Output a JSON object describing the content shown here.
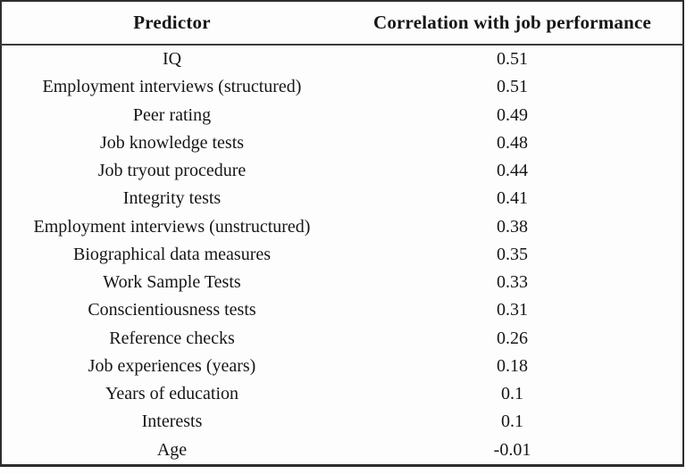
{
  "table": {
    "columns": [
      {
        "label": "Predictor"
      },
      {
        "label": "Correlation with job performance"
      }
    ],
    "rows": [
      {
        "predictor": "IQ",
        "correlation": "0.51"
      },
      {
        "predictor": "Employment interviews (structured)",
        "correlation": "0.51"
      },
      {
        "predictor": "Peer rating",
        "correlation": "0.49"
      },
      {
        "predictor": "Job knowledge tests",
        "correlation": "0.48"
      },
      {
        "predictor": "Job tryout procedure",
        "correlation": "0.44"
      },
      {
        "predictor": "Integrity tests",
        "correlation": "0.41"
      },
      {
        "predictor": "Employment interviews (unstructured)",
        "correlation": "0.38"
      },
      {
        "predictor": "Biographical data measures",
        "correlation": "0.35"
      },
      {
        "predictor": "Work Sample Tests",
        "correlation": "0.33"
      },
      {
        "predictor": "Conscientiousness tests",
        "correlation": "0.31"
      },
      {
        "predictor": "Reference checks",
        "correlation": "0.26"
      },
      {
        "predictor": "Job experiences (years)",
        "correlation": "0.18"
      },
      {
        "predictor": "Years of education",
        "correlation": "0.1"
      },
      {
        "predictor": "Interests",
        "correlation": "0.1"
      },
      {
        "predictor": "Age",
        "correlation": "-0.01"
      }
    ],
    "colors": {
      "background": "#fdfdfd",
      "border": "#2e2e2e",
      "text": "#161616"
    }
  }
}
